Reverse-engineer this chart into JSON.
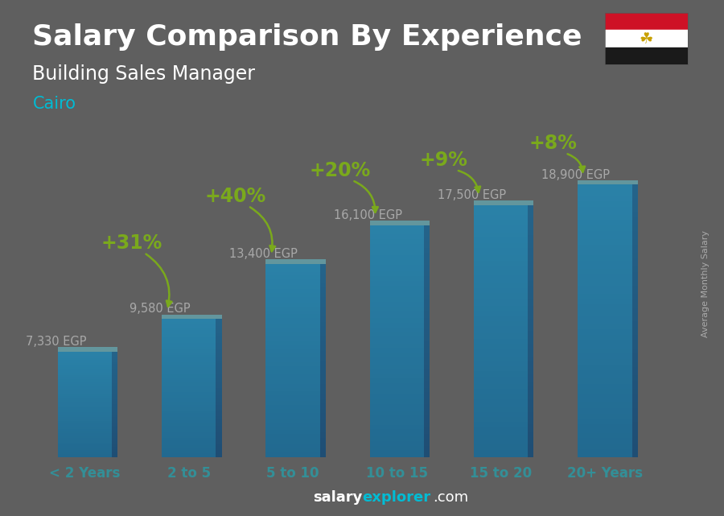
{
  "title": "Salary Comparison By Experience",
  "subtitle": "Building Sales Manager",
  "city": "Cairo",
  "categories": [
    "< 2 Years",
    "2 to 5",
    "5 to 10",
    "10 to 15",
    "15 to 20",
    "20+ Years"
  ],
  "values": [
    7330,
    9580,
    13400,
    16100,
    17500,
    18900
  ],
  "labels": [
    "7,330 EGP",
    "9,580 EGP",
    "13,400 EGP",
    "16,100 EGP",
    "17,500 EGP",
    "18,900 EGP"
  ],
  "pct_changes": [
    null,
    "+31%",
    "+40%",
    "+20%",
    "+9%",
    "+8%"
  ],
  "bar_face_color": "#29b6f6",
  "bar_side_color": "#0277bd",
  "bar_top_color": "#4dd0e1",
  "bg_color": "#888888",
  "title_color": "#ffffff",
  "subtitle_color": "#ffffff",
  "city_color": "#00bcd4",
  "label_color": "#ffffff",
  "pct_color": "#aaff00",
  "arrow_color": "#aaff00",
  "footer_salary_color": "#ffffff",
  "footer_explorer_color": "#00bcd4",
  "footer_com_color": "#ffffff",
  "footer_bold": "salary",
  "footer_normal": "explorer.com",
  "ylabel_text": "Average Monthly Salary",
  "ylabel_color": "#aaaaaa",
  "title_fontsize": 26,
  "subtitle_fontsize": 17,
  "city_fontsize": 15,
  "label_fontsize": 10.5,
  "pct_fontsize": 17,
  "xtick_fontsize": 12,
  "ylim": [
    0,
    23000
  ],
  "pct_offsets_y": [
    0,
    0.2,
    0.175,
    0.135,
    0.105,
    0.095
  ],
  "pct_offsets_x": [
    0,
    -0.55,
    -0.55,
    -0.55,
    -0.55,
    -0.5
  ]
}
